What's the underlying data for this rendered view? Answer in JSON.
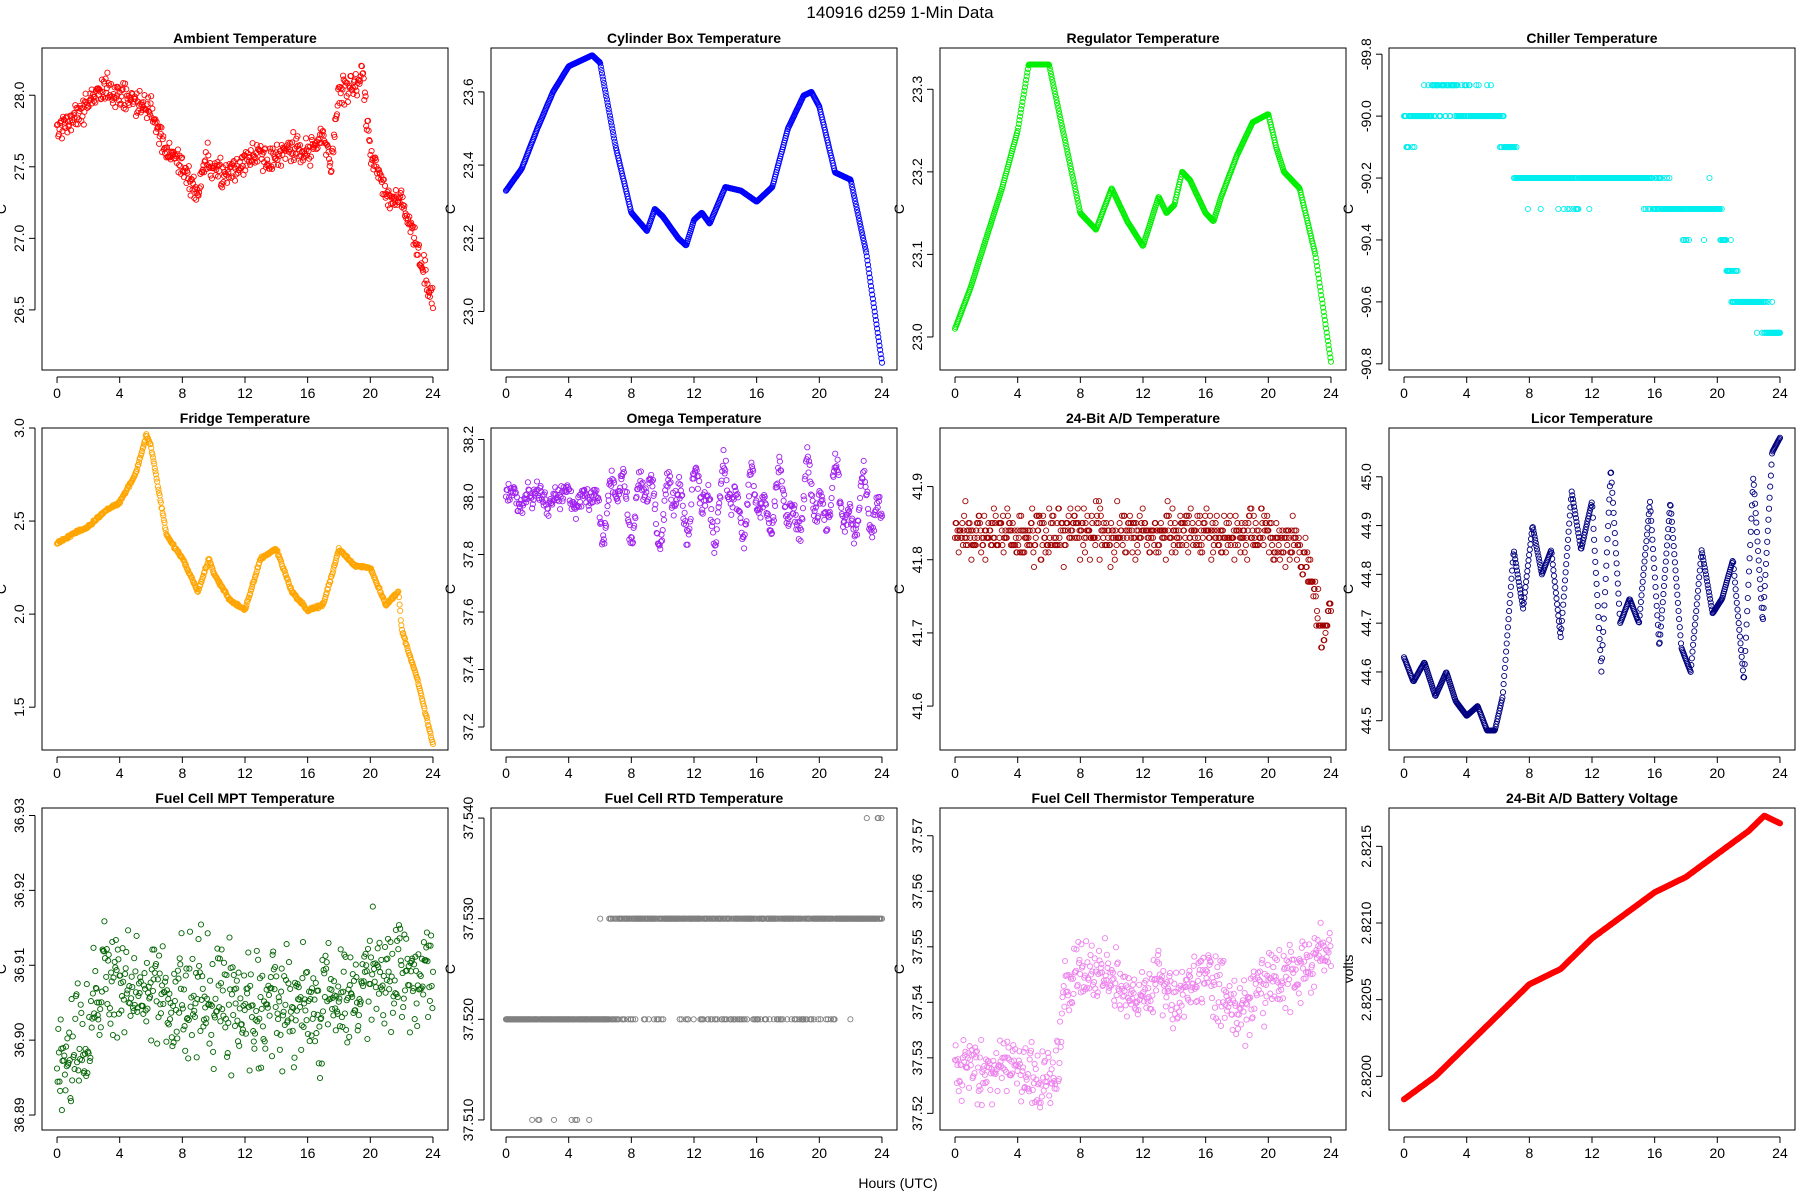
{
  "figure": {
    "title": "140916   d259   1-Min Data",
    "xlabel": "Hours (UTC)"
  },
  "chart_data": [
    {
      "type": "scatter",
      "title": "Ambient Temperature",
      "ylabel": "C",
      "color": "#ff0000",
      "xlim": [
        -0.96,
        24.96
      ],
      "ylim": [
        26.08,
        28.33
      ],
      "xticks": [
        0,
        4,
        8,
        12,
        16,
        20,
        24
      ],
      "yticks": [
        26.5,
        27.0,
        27.5,
        28.0
      ],
      "ytick_labels": [
        "26.5",
        "27.0",
        "27.5",
        "28.0"
      ],
      "x": [
        0,
        1,
        2,
        3,
        4,
        5,
        6,
        7,
        8,
        9,
        9.5,
        10,
        11,
        12,
        13,
        14,
        15,
        16,
        17,
        17.5,
        18,
        19,
        19.5,
        20,
        20.5,
        21,
        22,
        23,
        23.5,
        24
      ],
      "y": [
        27.75,
        27.85,
        27.95,
        28.05,
        28.0,
        27.95,
        27.9,
        27.6,
        27.5,
        27.3,
        27.6,
        27.45,
        27.45,
        27.55,
        27.6,
        27.55,
        27.65,
        27.6,
        27.7,
        27.5,
        28.05,
        28.05,
        28.15,
        27.6,
        27.5,
        27.3,
        27.25,
        26.95,
        26.75,
        26.55
      ],
      "spread": 0.14
    },
    {
      "type": "scatter",
      "title": "Cylinder Box Temperature",
      "ylabel": "C",
      "color": "#0000ff",
      "xlim": [
        -0.96,
        24.96
      ],
      "ylim": [
        22.84,
        23.72
      ],
      "xticks": [
        0,
        4,
        8,
        12,
        16,
        20,
        24
      ],
      "yticks": [
        23.0,
        23.2,
        23.4,
        23.6
      ],
      "ytick_labels": [
        "23.0",
        "23.2",
        "23.4",
        "23.6"
      ],
      "x": [
        0,
        1,
        2,
        3,
        4,
        5,
        5.5,
        6,
        7,
        8,
        9,
        9.5,
        10,
        11,
        11.5,
        12,
        12.5,
        13,
        14,
        15,
        16,
        17,
        18,
        19,
        19.5,
        20,
        21,
        22,
        23,
        24
      ],
      "y": [
        23.33,
        23.39,
        23.5,
        23.6,
        23.67,
        23.69,
        23.7,
        23.68,
        23.45,
        23.27,
        23.22,
        23.28,
        23.26,
        23.2,
        23.18,
        23.25,
        23.27,
        23.24,
        23.34,
        23.33,
        23.3,
        23.34,
        23.5,
        23.59,
        23.6,
        23.56,
        23.38,
        23.36,
        23.16,
        22.86
      ],
      "spread": 0.0
    },
    {
      "type": "scatter",
      "title": "Regulator Temperature",
      "ylabel": "C",
      "color": "#00ee00",
      "xlim": [
        -0.96,
        24.96
      ],
      "ylim": [
        22.96,
        23.35
      ],
      "xticks": [
        0,
        4,
        8,
        12,
        16,
        20,
        24
      ],
      "yticks": [
        23.0,
        23.1,
        23.2,
        23.3
      ],
      "ytick_labels": [
        "23.0",
        "23.1",
        "23.2",
        "23.3"
      ],
      "x": [
        0,
        1,
        2,
        3,
        4,
        4.7,
        5,
        6,
        7,
        8,
        9,
        10,
        11,
        12,
        13,
        13.5,
        14,
        14.5,
        15,
        16,
        16.5,
        17,
        18,
        19,
        20,
        20.5,
        21,
        22,
        23,
        24
      ],
      "y": [
        23.01,
        23.06,
        23.12,
        23.18,
        23.25,
        23.33,
        23.33,
        23.33,
        23.24,
        23.15,
        23.13,
        23.18,
        23.14,
        23.11,
        23.17,
        23.15,
        23.16,
        23.2,
        23.19,
        23.15,
        23.14,
        23.17,
        23.22,
        23.26,
        23.27,
        23.23,
        23.2,
        23.18,
        23.1,
        22.97
      ],
      "spread": 0.0
    },
    {
      "type": "scatter",
      "title": "Chiller Temperature",
      "ylabel": "C",
      "color": "#00eeee",
      "xlim": [
        -0.96,
        24.96
      ],
      "ylim": [
        -90.82,
        -89.78
      ],
      "xticks": [
        0,
        4,
        8,
        12,
        16,
        20,
        24
      ],
      "yticks": [
        -90.8,
        -90.6,
        -90.4,
        -90.2,
        -90.0,
        -89.8
      ],
      "ytick_labels": [
        "-90.8",
        "-90.6",
        "-90.4",
        "-90.2",
        "-90.0",
        "-89.8"
      ],
      "x": [
        0,
        1,
        2,
        3,
        4,
        5,
        6,
        7,
        8,
        9,
        10,
        11,
        12,
        13,
        14,
        15,
        16,
        17,
        18,
        19,
        20,
        21,
        22,
        23,
        24
      ],
      "y": [
        -90.05,
        -90.0,
        -89.95,
        -89.92,
        -89.96,
        -89.98,
        -90.0,
        -90.15,
        -90.22,
        -90.22,
        -90.22,
        -90.22,
        -90.2,
        -90.2,
        -90.18,
        -90.22,
        -90.25,
        -90.28,
        -90.35,
        -90.32,
        -90.28,
        -90.55,
        -90.6,
        -90.65,
        -90.7
      ],
      "spread": 0.07,
      "quantize": 0.1
    },
    {
      "type": "scatter",
      "title": "Fridge Temperature",
      "ylabel": "C",
      "color": "#ffa500",
      "xlim": [
        -0.96,
        24.96
      ],
      "ylim": [
        1.27,
        3.0
      ],
      "xticks": [
        0,
        4,
        8,
        12,
        16,
        20,
        24
      ],
      "yticks": [
        1.5,
        2.0,
        2.5,
        3.0
      ],
      "ytick_labels": [
        "1.5",
        "2.0",
        "2.5",
        "3.0"
      ],
      "x": [
        0,
        1,
        2,
        3,
        4,
        5,
        5.7,
        6,
        7,
        8,
        9,
        9.7,
        10,
        11,
        12,
        13,
        14,
        15,
        16,
        17,
        18,
        19,
        20,
        21,
        21.8,
        22,
        23,
        24
      ],
      "y": [
        2.38,
        2.43,
        2.47,
        2.55,
        2.6,
        2.75,
        2.96,
        2.9,
        2.42,
        2.3,
        2.12,
        2.3,
        2.22,
        2.08,
        2.02,
        2.3,
        2.35,
        2.12,
        2.02,
        2.05,
        2.35,
        2.26,
        2.25,
        2.05,
        2.12,
        1.92,
        1.65,
        1.3
      ],
      "spread": 0.012
    },
    {
      "type": "scatter",
      "title": "Omega Temperature",
      "ylabel": "C",
      "color": "#a020f0",
      "xlim": [
        -0.96,
        24.96
      ],
      "ylim": [
        37.12,
        38.24
      ],
      "xticks": [
        0,
        4,
        8,
        12,
        16,
        20,
        24
      ],
      "yticks": [
        37.2,
        37.4,
        37.6,
        37.8,
        38.0,
        38.2
      ],
      "ytick_labels": [
        "37.2",
        "37.4",
        "37.6",
        "37.8",
        "38.0",
        "38.2"
      ],
      "x": [
        0,
        2,
        4,
        6,
        7,
        8,
        9,
        10,
        11,
        12,
        13,
        14,
        15,
        16,
        17,
        18,
        19,
        20,
        21,
        22,
        23,
        24
      ],
      "y": [
        37.99,
        38.0,
        38.0,
        37.98,
        38.0,
        37.98,
        38.0,
        37.96,
        37.98,
        38.0,
        37.96,
        38.0,
        37.98,
        37.96,
        38.0,
        37.96,
        37.99,
        37.99,
        37.99,
        37.96,
        37.94,
        38.0
      ],
      "spread": 0.06,
      "osc": 0.14
    },
    {
      "type": "scatter",
      "title": "24-Bit A/D Temperature",
      "ylabel": "C",
      "color": "#a00000",
      "xlim": [
        -0.96,
        24.96
      ],
      "ylim": [
        41.54,
        41.98
      ],
      "xticks": [
        0,
        4,
        8,
        12,
        16,
        20,
        24
      ],
      "yticks": [
        41.6,
        41.7,
        41.8,
        41.9
      ],
      "ytick_labels": [
        "41.6",
        "41.7",
        "41.8",
        "41.9"
      ],
      "x": [
        0,
        4,
        8,
        12,
        16,
        20,
        22,
        23,
        23.5,
        24
      ],
      "y": [
        41.84,
        41.83,
        41.84,
        41.84,
        41.84,
        41.83,
        41.82,
        41.75,
        41.68,
        41.74
      ],
      "spread": 0.05,
      "quantize": 0.01
    },
    {
      "type": "scatter",
      "title": "Licor Temperature",
      "ylabel": "C",
      "color": "#000080",
      "xlim": [
        -0.96,
        24.96
      ],
      "ylim": [
        44.44,
        45.1
      ],
      "xticks": [
        0,
        4,
        8,
        12,
        16,
        20,
        24
      ],
      "yticks": [
        44.5,
        44.6,
        44.7,
        44.8,
        44.9,
        45.0
      ],
      "ytick_labels": [
        "44.5",
        "44.6",
        "44.7",
        "44.8",
        "44.9",
        "45.0"
      ],
      "x": [
        0,
        0.6,
        1.3,
        2,
        2.7,
        3.3,
        4,
        4.7,
        5.3,
        5.8,
        6.3,
        7,
        7.6,
        8.2,
        8.8,
        9.4,
        10,
        10.7,
        11.3,
        12,
        12.6,
        13.2,
        13.8,
        14.4,
        15,
        15.7,
        16.3,
        17,
        17.7,
        18.3,
        19,
        19.7,
        20.3,
        21,
        21.7,
        22.3,
        22.9,
        23.5,
        24
      ],
      "y": [
        44.63,
        44.58,
        44.62,
        44.55,
        44.6,
        44.54,
        44.51,
        44.53,
        44.48,
        44.48,
        44.55,
        44.85,
        44.73,
        44.9,
        44.8,
        44.85,
        44.67,
        44.97,
        44.85,
        44.95,
        44.6,
        45.02,
        44.7,
        44.75,
        44.7,
        44.95,
        44.65,
        44.95,
        44.65,
        44.6,
        44.85,
        44.72,
        44.75,
        44.83,
        44.58,
        45.0,
        44.7,
        45.05,
        45.08
      ],
      "spread": 0.0
    },
    {
      "type": "scatter",
      "title": "Fuel Cell MPT Temperature",
      "ylabel": "C",
      "color": "#006400",
      "xlim": [
        -0.96,
        24.96
      ],
      "ylim": [
        36.888,
        36.931
      ],
      "xticks": [
        0,
        4,
        8,
        12,
        16,
        20,
        24
      ],
      "yticks": [
        36.89,
        36.9,
        36.91,
        36.92,
        36.93
      ],
      "ytick_labels": [
        "36.89",
        "36.90",
        "36.91",
        "36.92",
        "36.93"
      ],
      "x": [
        0,
        1,
        2,
        3,
        4,
        6,
        8,
        10,
        12,
        14,
        16,
        18,
        20,
        22,
        24
      ],
      "y": [
        36.897,
        36.899,
        36.9,
        36.909,
        36.906,
        36.907,
        36.905,
        36.906,
        36.905,
        36.905,
        36.904,
        36.906,
        36.908,
        36.908,
        36.909
      ],
      "spread": 0.011
    },
    {
      "type": "scatter",
      "title": "Fuel Cell RTD Temperature",
      "ylabel": "C",
      "color": "#808080",
      "xlim": [
        -0.96,
        24.96
      ],
      "ylim": [
        37.509,
        37.541
      ],
      "xticks": [
        0,
        4,
        8,
        12,
        16,
        20,
        24
      ],
      "yticks": [
        37.51,
        37.52,
        37.53,
        37.54
      ],
      "ytick_labels": [
        "37.510",
        "37.520",
        "37.530",
        "37.540"
      ],
      "x": [
        0,
        3,
        6,
        6.5,
        7,
        10,
        14,
        17,
        20,
        22,
        23,
        24
      ],
      "y": [
        37.518,
        37.518,
        37.52,
        37.524,
        37.526,
        37.527,
        37.526,
        37.526,
        37.527,
        37.528,
        37.532,
        37.533
      ],
      "spread": 0.006,
      "quantize": 0.01
    },
    {
      "type": "scatter",
      "title": "Fuel Cell Thermistor Temperature",
      "ylabel": "C",
      "color": "#ee82ee",
      "xlim": [
        -0.96,
        24.96
      ],
      "ylim": [
        37.517,
        37.575
      ],
      "xticks": [
        0,
        4,
        8,
        12,
        16,
        20,
        24
      ],
      "yticks": [
        37.52,
        37.53,
        37.54,
        37.55,
        37.56,
        37.57
      ],
      "ytick_labels": [
        "37.52",
        "37.53",
        "37.54",
        "37.55",
        "37.56",
        "37.57"
      ],
      "x": [
        0,
        2,
        4,
        6,
        6.5,
        7,
        8,
        10,
        12,
        13,
        14,
        16,
        18,
        20,
        22,
        23,
        24
      ],
      "y": [
        37.529,
        37.528,
        37.527,
        37.526,
        37.528,
        37.543,
        37.546,
        37.545,
        37.54,
        37.545,
        37.54,
        37.545,
        37.538,
        37.543,
        37.545,
        37.548,
        37.55
      ],
      "spread": 0.008
    },
    {
      "type": "scatter",
      "title": "24-Bit A/D Battery Voltage",
      "ylabel": "volts",
      "color": "#ff0000",
      "xlim": [
        -0.96,
        24.96
      ],
      "ylim": [
        2.81965,
        2.82175
      ],
      "xticks": [
        0,
        4,
        8,
        12,
        16,
        20,
        24
      ],
      "yticks": [
        2.82,
        2.8205,
        2.821,
        2.8215
      ],
      "ytick_labels": [
        "2.8200",
        "2.8205",
        "2.8210",
        "2.8215"
      ],
      "x": [
        0,
        2,
        4,
        6,
        8,
        10,
        12,
        14,
        16,
        18,
        20,
        22,
        23,
        24
      ],
      "y": [
        2.81985,
        2.82,
        2.8202,
        2.8204,
        2.8206,
        2.8207,
        2.8209,
        2.82105,
        2.8212,
        2.8213,
        2.82145,
        2.8216,
        2.8217,
        2.82165
      ],
      "spread": 0.0
    }
  ]
}
